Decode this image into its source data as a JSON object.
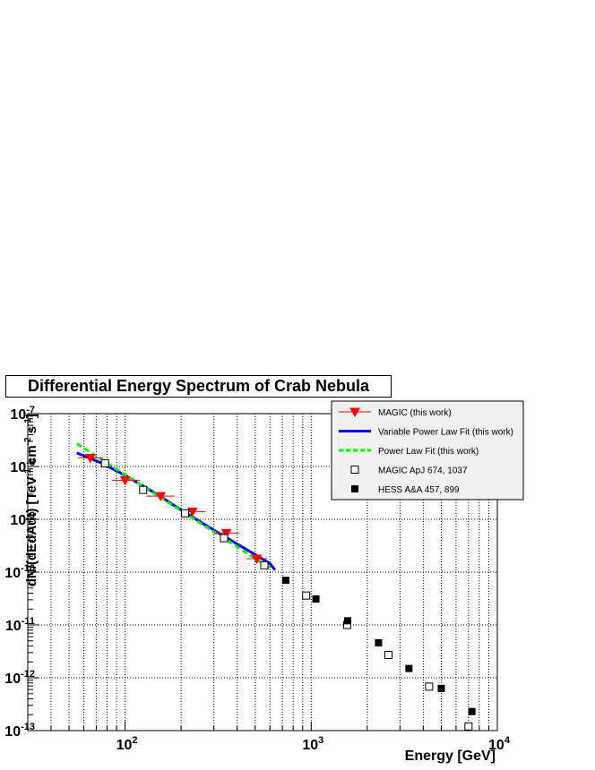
{
  "chart_data": {
    "type": "scatter",
    "title": "Differential Energy Spectrum of Crab Nebula",
    "xlabel": "Energy [GeV]",
    "ylabel_parts": [
      "dN/(dEdAdt) [TeV",
      "-1",
      " cm",
      "-2",
      " s",
      "-1",
      "]"
    ],
    "x_scale": "log",
    "y_scale": "log",
    "xlim": [
      30,
      10000
    ],
    "ylim": [
      1e-13,
      1e-07
    ],
    "grid": true,
    "legend_position": "top-right",
    "x_ticks": [
      {
        "base": "10",
        "exp": "2",
        "value": 100
      },
      {
        "base": "10",
        "exp": "3",
        "value": 1000
      },
      {
        "base": "10",
        "exp": "4",
        "value": 10000
      }
    ],
    "y_ticks": [
      {
        "base": "10",
        "exp": "-7",
        "value": 1e-07
      },
      {
        "base": "10",
        "exp": "-8",
        "value": 1e-08
      },
      {
        "base": "10",
        "exp": "-9",
        "value": 1e-09
      },
      {
        "base": "10",
        "exp": "-10",
        "value": 1e-10
      },
      {
        "base": "10",
        "exp": "-11",
        "value": 1e-11
      },
      {
        "base": "10",
        "exp": "-12",
        "value": 1e-12
      },
      {
        "base": "10",
        "exp": "-13",
        "value": 1e-13
      }
    ],
    "legend": [
      {
        "label": "MAGIC  (this work)",
        "symbol": "red-triangle-line"
      },
      {
        "label": "Variable Power Law Fit (this work)",
        "symbol": "blue-line"
      },
      {
        "label": "Power Law Fit (this work)",
        "symbol": "green-dashed-line"
      },
      {
        "label": "MAGIC  ApJ 674, 1037",
        "symbol": "open-square"
      },
      {
        "label": "HESS A&A 457, 899",
        "symbol": "filled-square"
      }
    ],
    "series": [
      {
        "name": "MAGIC  (this work)",
        "color": "#ff0000",
        "marker": "triangle-down",
        "points": [
          {
            "x": 65,
            "y": 1.45e-08,
            "xerr": [
              56,
              76
            ],
            "yerr": [
              1.2e-08,
              1.7e-08
            ]
          },
          {
            "x": 100,
            "y": 5.5e-09,
            "xerr": [
              85,
              120
            ],
            "yerr": [
              4.8e-09,
              6.3e-09
            ]
          },
          {
            "x": 155,
            "y": 2.75e-09,
            "xerr": [
              130,
              185
            ],
            "yerr": [
              2.5e-09,
              3.05e-09
            ]
          },
          {
            "x": 230,
            "y": 1.4e-09,
            "xerr": [
              200,
              270
            ],
            "yerr": [
              1.3e-09,
              1.55e-09
            ]
          },
          {
            "x": 350,
            "y": 5.5e-10,
            "xerr": [
              300,
              410
            ],
            "yerr": [
              5e-10,
              6.1e-10
            ]
          },
          {
            "x": 510,
            "y": 1.8e-10,
            "xerr": [
              450,
              580
            ],
            "yerr": [
              1.6e-10,
              2e-10
            ]
          }
        ]
      },
      {
        "name": "Variable Power Law Fit (this work)",
        "color": "#0000ff",
        "style": "solid",
        "x": [
          55,
          75,
          100,
          150,
          200,
          300,
          400,
          500,
          600,
          640
        ],
        "y": [
          1.8e-08,
          1.15e-08,
          6.8e-09,
          2.9e-09,
          1.5e-09,
          6.2e-10,
          3.4e-10,
          2.15e-10,
          1.45e-10,
          1.1e-10
        ]
      },
      {
        "name": "Power Law Fit (this work)",
        "color": "#00ff00",
        "style": "dashed",
        "x": [
          55,
          600
        ],
        "y": [
          2.7e-08,
          1.2e-10
        ]
      },
      {
        "name": "MAGIC  ApJ 674, 1037",
        "color": "#000000",
        "marker": "open-square",
        "points": [
          {
            "x": 78,
            "y": 1.15e-08
          },
          {
            "x": 125,
            "y": 3.6e-09
          },
          {
            "x": 210,
            "y": 1.3e-09
          },
          {
            "x": 340,
            "y": 4.4e-10
          },
          {
            "x": 560,
            "y": 1.35e-10
          },
          {
            "x": 940,
            "y": 3.6e-11
          },
          {
            "x": 1560,
            "y": 1e-11
          },
          {
            "x": 2600,
            "y": 2.7e-12
          },
          {
            "x": 4300,
            "y": 6.8e-13
          },
          {
            "x": 7000,
            "y": 1.2e-13
          }
        ]
      },
      {
        "name": "HESS A&A 457, 899",
        "color": "#000000",
        "marker": "filled-square",
        "points": [
          {
            "x": 730,
            "y": 7e-11
          },
          {
            "x": 1060,
            "y": 3.1e-11
          },
          {
            "x": 1570,
            "y": 1.2e-11
          },
          {
            "x": 2300,
            "y": 4.6e-12
          },
          {
            "x": 3350,
            "y": 1.5e-12
          },
          {
            "x": 5000,
            "y": 6.3e-13
          },
          {
            "x": 7300,
            "y": 2.3e-13
          }
        ]
      }
    ]
  }
}
